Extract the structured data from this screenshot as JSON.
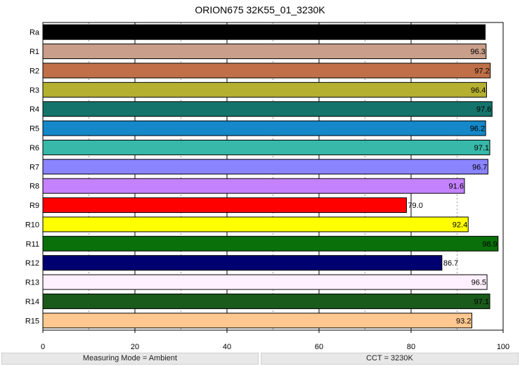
{
  "chart_data": {
    "type": "bar",
    "orientation": "horizontal",
    "title": "ORION675 32K55_01_3230K",
    "categories": [
      "Ra",
      "R1",
      "R2",
      "R3",
      "R4",
      "R5",
      "R6",
      "R7",
      "R8",
      "R9",
      "R10",
      "R11",
      "R12",
      "R13",
      "R14",
      "R15"
    ],
    "values": [
      96.1,
      96.3,
      97.2,
      96.4,
      97.6,
      96.2,
      97.1,
      96.7,
      91.6,
      79.0,
      92.4,
      98.9,
      86.7,
      96.5,
      97.1,
      93.2
    ],
    "value_labels": [
      "96.1",
      "96.3",
      "97.2",
      "96.4",
      "97.6",
      "96.2",
      "97.1",
      "96.7",
      "91.6",
      "79.0",
      "92.4",
      "98.9",
      "86.7",
      "96.5",
      "97.1",
      "93.2"
    ],
    "colors": [
      "#000000",
      "#c99e8a",
      "#c07048",
      "#b5b030",
      "#14746c",
      "#1488c8",
      "#38b8a8",
      "#8a84ff",
      "#c482ff",
      "#ff0000",
      "#ffff00",
      "#0a700a",
      "#000070",
      "#fff0ff",
      "#1a5a1a",
      "#ffc890"
    ],
    "xlim": [
      0,
      100
    ],
    "x_ticks": [
      "0",
      "20",
      "40",
      "60",
      "80",
      "100"
    ],
    "grid": true
  },
  "footer": {
    "measuring_mode": "Measuring Mode = Ambient",
    "cct": "CCT = 3230K"
  }
}
